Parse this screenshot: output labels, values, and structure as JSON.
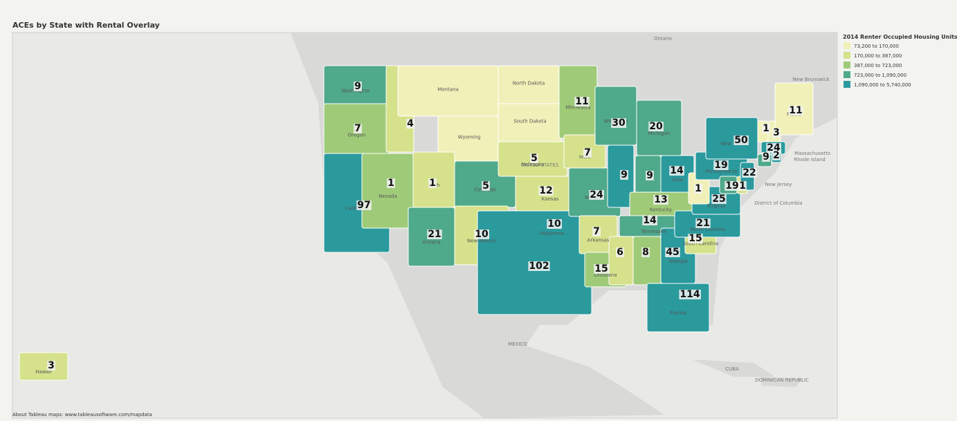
{
  "title": "ACEs by State with Rental Overlay",
  "legend": {
    "title": "2014 Renter Occupied Housing Units",
    "items": [
      {
        "label": "73,200 to 170,000",
        "color": "#f1f0b9"
      },
      {
        "label": "170,000 to 387,000",
        "color": "#d5e28b"
      },
      {
        "label": "387,000 to 723,000",
        "color": "#9fcb79"
      },
      {
        "label": "723,000 to 1,090,000",
        "color": "#4fa98b"
      },
      {
        "label": "1,090,000 to 5,740,000",
        "color": "#2a9a9d"
      }
    ]
  },
  "states": [
    {
      "name": "Washington",
      "value": 9,
      "color": "#4fa98b"
    },
    {
      "name": "Oregon",
      "value": 7,
      "color": "#9fcb79"
    },
    {
      "name": "California",
      "value": 97,
      "color": "#2a9a9d"
    },
    {
      "name": "Nevada",
      "value": 1,
      "color": "#9fcb79"
    },
    {
      "name": "Idaho",
      "value": 4,
      "color": "#d5e28b"
    },
    {
      "name": "Montana",
      "value": null,
      "color": "#f1f0b9"
    },
    {
      "name": "Wyoming",
      "value": null,
      "color": "#f1f0b9"
    },
    {
      "name": "Utah",
      "value": 1,
      "color": "#d5e28b"
    },
    {
      "name": "Arizona",
      "value": 21,
      "color": "#4fa98b"
    },
    {
      "name": "Colorado",
      "value": 5,
      "color": "#4fa98b"
    },
    {
      "name": "New Mexico",
      "value": 10,
      "color": "#d5e28b"
    },
    {
      "name": "North Dakota",
      "value": null,
      "color": "#f1f0b9"
    },
    {
      "name": "South Dakota",
      "value": null,
      "color": "#f1f0b9"
    },
    {
      "name": "Nebraska",
      "value": 5,
      "color": "#d5e28b"
    },
    {
      "name": "Kansas",
      "value": 12,
      "color": "#d5e28b"
    },
    {
      "name": "Oklahoma",
      "value": 10,
      "color": "#9fcb79"
    },
    {
      "name": "Texas",
      "value": 102,
      "color": "#2a9a9d"
    },
    {
      "name": "Minnesota",
      "value": 11,
      "color": "#9fcb79"
    },
    {
      "name": "Iowa",
      "value": 7,
      "color": "#d5e28b"
    },
    {
      "name": "Missouri",
      "value": 24,
      "color": "#4fa98b"
    },
    {
      "name": "Arkansas",
      "value": 7,
      "color": "#d5e28b"
    },
    {
      "name": "Louisiana",
      "value": 15,
      "color": "#9fcb79"
    },
    {
      "name": "Wisconsin",
      "value": 30,
      "color": "#4fa98b"
    },
    {
      "name": "Illinois",
      "value": 9,
      "color": "#2a9a9d"
    },
    {
      "name": "Michigan",
      "value": 20,
      "color": "#4fa98b"
    },
    {
      "name": "Indiana",
      "value": 9,
      "color": "#4fa98b"
    },
    {
      "name": "Ohio",
      "value": 14,
      "color": "#2a9a9d"
    },
    {
      "name": "Kentucky",
      "value": 13,
      "color": "#9fcb79"
    },
    {
      "name": "Tennessee",
      "value": 14,
      "color": "#4fa98b"
    },
    {
      "name": "Mississippi",
      "value": 6,
      "color": "#d5e28b"
    },
    {
      "name": "Alabama",
      "value": 8,
      "color": "#9fcb79"
    },
    {
      "name": "Georgia",
      "value": 45,
      "color": "#2a9a9d"
    },
    {
      "name": "Florida",
      "value": 114,
      "color": "#2a9a9d"
    },
    {
      "name": "South Carolina",
      "value": 15,
      "color": "#d5e28b"
    },
    {
      "name": "North Carolina",
      "value": 21,
      "color": "#2a9a9d"
    },
    {
      "name": "Virginia",
      "value": 25,
      "color": "#2a9a9d"
    },
    {
      "name": "West Virginia",
      "value": 1,
      "color": "#f1f0b9"
    },
    {
      "name": "Pennsylvania",
      "value": 19,
      "color": "#2a9a9d"
    },
    {
      "name": "Maryland",
      "value": 19,
      "color": "#4fa98b"
    },
    {
      "name": "Delaware",
      "value": 1,
      "color": "#d5e28b"
    },
    {
      "name": "New Jersey",
      "value": 22,
      "color": "#2a9a9d"
    },
    {
      "name": "New York",
      "value": 50,
      "color": "#2a9a9d"
    },
    {
      "name": "Vermont",
      "value": 1,
      "color": "#f1f0b9"
    },
    {
      "name": "New Hampshire",
      "value": 3,
      "color": "#f1f0b9"
    },
    {
      "name": "Maine",
      "value": 11,
      "color": "#f1f0b9"
    },
    {
      "name": "Massachusetts",
      "value": 24,
      "color": "#2a9a9d"
    },
    {
      "name": "Connecticut",
      "value": 9,
      "color": "#4fa98b"
    },
    {
      "name": "Rhode Island",
      "value": 2,
      "color": "#2a9a9d"
    },
    {
      "name": "Hawaii",
      "value": 3,
      "color": "#d5e28b"
    }
  ],
  "map_labels": [
    "Ontario",
    "New Brunswick",
    "Massachusetts",
    "Rhode Island",
    "New Jersey",
    "District of Columbia",
    "UNITED STATES",
    "MEXICO",
    "CUBA",
    "DOMINICAN REPUBLIC"
  ],
  "footer": "About Tableau maps: www.tableausoftware.com/mapdata"
}
